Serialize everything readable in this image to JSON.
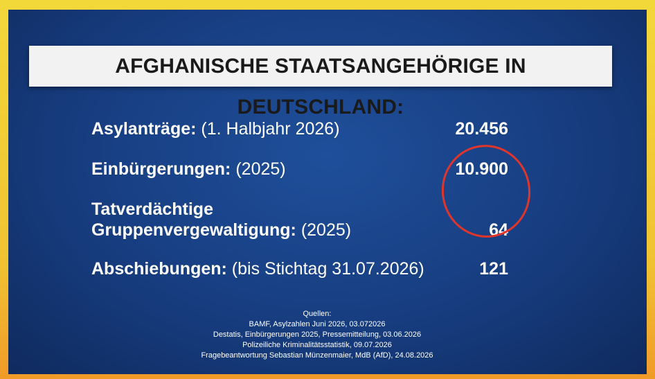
{
  "header": {
    "title": "AFGHANISCHE STAATSANGEHÖRIGE IN DEUTSCHLAND:"
  },
  "rows": [
    {
      "label": [
        "Asylanträge:"
      ],
      "note": "(1. Halbjahr 2026)",
      "value": "20.456"
    },
    {
      "label": [
        "Einbürgerungen:"
      ],
      "note": "(2025)",
      "value": "10.900"
    },
    {
      "label": [
        "Tatverdächtige",
        "Gruppenvergewaltigung:"
      ],
      "note": "(2025)",
      "value": "64"
    },
    {
      "label": [
        "Abschiebungen:"
      ],
      "note": "(bis Stichtag 31.07.2026)",
      "value": "121"
    }
  ],
  "sources": [
    "Quellen:",
    "BAMF, Asylzahlen Juni 2026, 03.072026",
    "Destatis, Einbürgerungen 2025, Pressemitteilung, 03.06.2026",
    "Polizeiliche Kriminalitätsstatistik, 09.07.2026",
    "Fragebeantwortung Sebastian Münzenmaier, MdB (AfD), 24.08.2026"
  ]
}
